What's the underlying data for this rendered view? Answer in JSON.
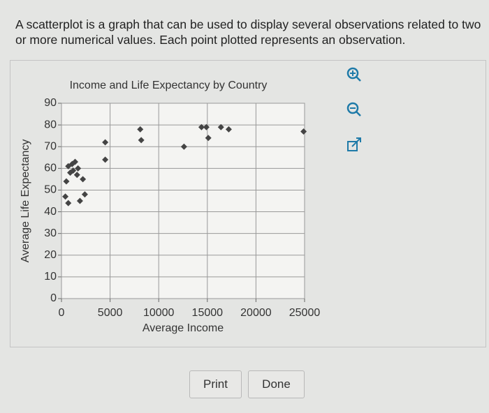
{
  "prompt": "A scatterplot is a graph that can be used to display several observations related to two or more numerical values. Each point plotted represents an observation.",
  "chart_data": {
    "type": "scatter",
    "title": "Income and Life Expectancy by Country",
    "x_label": "Average Income",
    "y_label": "Average Life Expectancy",
    "x": [
      700,
      1100,
      1400,
      900,
      1200,
      1700,
      1600,
      2200,
      500,
      400,
      700,
      1900,
      2400,
      4500,
      4500,
      8100,
      8200,
      12600,
      14400,
      14900,
      15100,
      16400,
      17200,
      24900
    ],
    "values": [
      61,
      62,
      63,
      58,
      59,
      60,
      57,
      55,
      54,
      47,
      44,
      45,
      48,
      72,
      64,
      78,
      73,
      70,
      79,
      79,
      74,
      79,
      78,
      77
    ],
    "color": "#444444",
    "xlim": [
      0,
      25000
    ],
    "xticks": [
      0,
      5000,
      10000,
      15000,
      20000,
      25000
    ],
    "ylim": [
      0,
      90
    ],
    "yticks": [
      0,
      10,
      20,
      30,
      40,
      50,
      60,
      70,
      80,
      90
    ],
    "grid": true
  },
  "buttons": [
    "Print",
    "Done"
  ]
}
